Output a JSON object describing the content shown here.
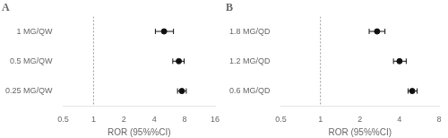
{
  "chart_data": [
    {
      "type": "scatter",
      "title": "A",
      "categories": [
        "1 MG/QW",
        "0.5 MG/QW",
        "0.25 MG/QW"
      ],
      "values": [
        5.0,
        7.0,
        7.5
      ],
      "ci_low": [
        4.1,
        6.1,
        6.8
      ],
      "ci_high": [
        6.2,
        7.9,
        8.3
      ],
      "xlabel": "ROR (95%%CI)",
      "xlim": [
        0.5,
        16
      ],
      "xticks": [
        0.5,
        1,
        2,
        4,
        8,
        16
      ],
      "log": "x",
      "vline": 1.0,
      "color": "#111111",
      "grid": false
    },
    {
      "type": "scatter",
      "title": "B",
      "categories": [
        "1.8 MG/QD",
        "1.2 MG/QD",
        "0.6 MG/QD"
      ],
      "values": [
        2.7,
        4.0,
        5.0
      ],
      "ci_low": [
        2.35,
        3.6,
        4.65
      ],
      "ci_high": [
        3.1,
        4.5,
        5.45
      ],
      "xlabel": "ROR (95%%CI)",
      "xlim": [
        0.5,
        8
      ],
      "xticks": [
        0.5,
        1,
        2,
        4,
        8
      ],
      "log": "x",
      "vline": 1.0,
      "color": "#111111",
      "grid": false
    }
  ]
}
